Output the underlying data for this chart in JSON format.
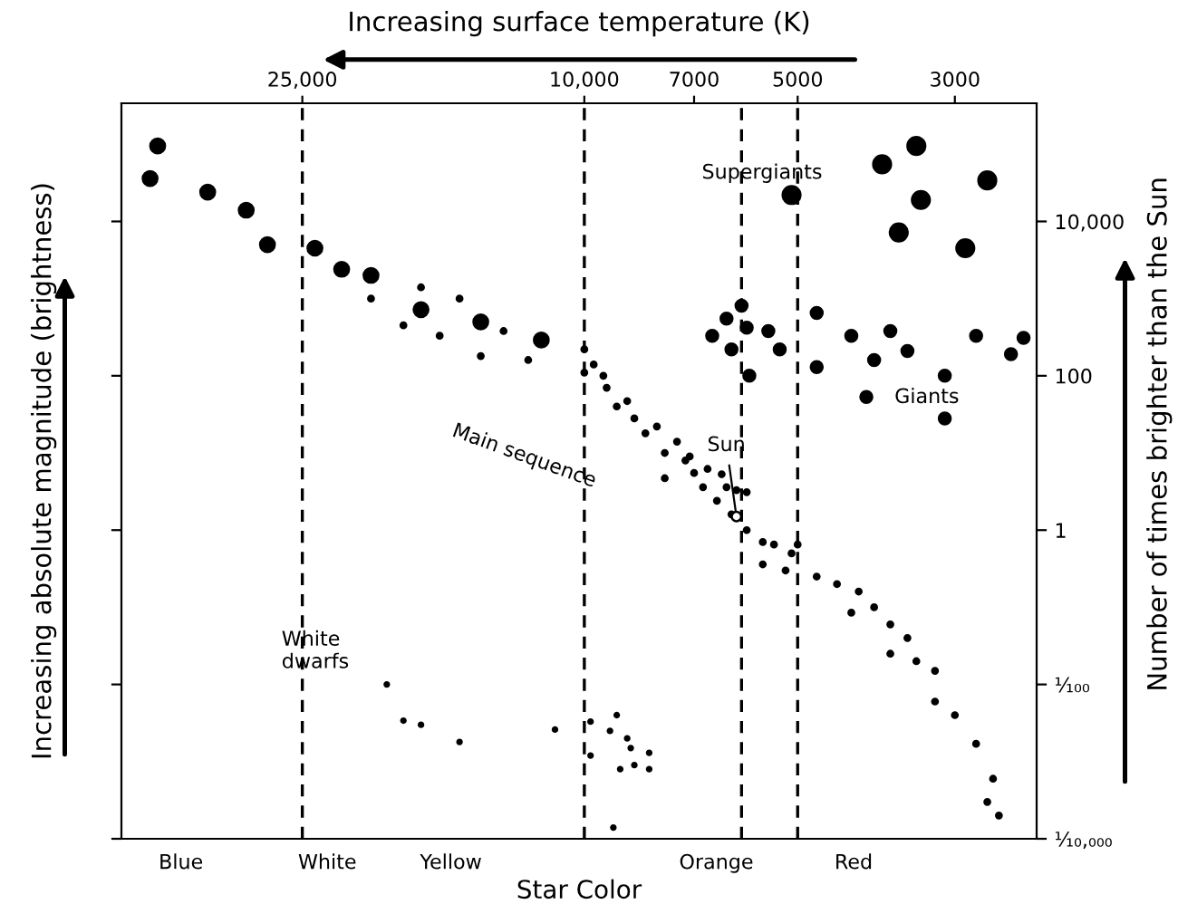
{
  "chart_data": {
    "type": "scatter",
    "xlabel": "Increasing surface temperature (K)",
    "ylabel": "Number of times brighter than the Sun",
    "log": "xy",
    "xlim": [
      45000,
      2300
    ],
    "xticks": [
      {
        "value": 25000,
        "label": "25,000"
      },
      {
        "value": 10000,
        "label": "10,000"
      },
      7000,
      5000,
      3000
    ],
    "ylim": [
      0.0001,
      340000
    ],
    "yticks": [
      {
        "value": 10000,
        "label": "10,000"
      },
      100,
      1,
      {
        "value": 0.01,
        "label": "¹⁄₁₀₀"
      },
      {
        "value": 0.0001,
        "label": "¹⁄₁₀,₀₀₀"
      }
    ],
    "marker": "circle",
    "ref_lines": [
      {
        "axis": "x",
        "value": 25000,
        "line_style": "dashed"
      },
      {
        "axis": "x",
        "value": 10000,
        "line_style": "dashed"
      },
      {
        "axis": "x",
        "value": 6000,
        "line_style": "dashed"
      },
      {
        "axis": "x",
        "value": 5000,
        "line_style": "dashed"
      }
    ],
    "annotations": [
      "Supergiants",
      "Giants",
      "Main sequence",
      "White dwarfs",
      {
        "text": "Sun",
        "x": 6100,
        "y": 1.5
      },
      "Star Color",
      "Blue",
      "White",
      "Yellow",
      "Orange",
      "Red",
      "Increasing absolute magnitude (brightness)"
    ],
    "series": [
      {
        "color": "#000000",
        "x": [
          40000,
          41000,
          34000,
          30000,
          28000,
          24000,
          22000,
          20000,
          17000,
          14000,
          11500
        ],
        "values": [
          95000,
          36000,
          24000,
          14000,
          5000,
          4500,
          2400,
          2000,
          720,
          500,
          290
        ]
      },
      {
        "color": "#000000",
        "x": [
          20000,
          17000,
          15000,
          18000,
          16000,
          14000,
          13000,
          12000,
          10000,
          10000,
          9700,
          9400,
          9300,
          9000,
          8700,
          8500,
          8200,
          7900,
          7700,
          7400,
          7200,
          7000,
          7700,
          7100,
          6800,
          6700,
          6500,
          6400,
          6300,
          6200,
          6100,
          5900,
          5900,
          5600,
          5400,
          5200,
          5600,
          5100,
          5000,
          4700,
          4400,
          4200,
          4100,
          3900,
          3700,
          3700,
          3500,
          3400,
          3200,
          3200,
          3000,
          2800,
          2700,
          2650,
          2600
        ],
        "values": [
          1000,
          1400,
          1000,
          450,
          330,
          180,
          380,
          160,
          220,
          110,
          140,
          100,
          70,
          40,
          47,
          28,
          18,
          22,
          10,
          14,
          8,
          5.5,
          4.7,
          9,
          3.6,
          6.2,
          2.4,
          5.3,
          3.6,
          1.6,
          3.3,
          3.1,
          1,
          0.7,
          0.65,
          0.3,
          0.36,
          0.5,
          0.65,
          0.25,
          0.2,
          0.085,
          0.16,
          0.1,
          0.06,
          0.025,
          0.04,
          0.02,
          0.015,
          0.006,
          0.004,
          0.0017,
          0.0003,
          0.0006,
          0.0002
        ]
      },
      {
        "color": "#000000",
        "x": [
          6600,
          6300,
          6200,
          6000,
          5900,
          5850,
          5500,
          5300,
          4700,
          4700,
          4200,
          3900,
          3700,
          3500,
          4000,
          3100,
          3100,
          2800,
          2500,
          2400
        ],
        "values": [
          330,
          550,
          220,
          810,
          420,
          100,
          380,
          220,
          650,
          130,
          330,
          160,
          380,
          210,
          53,
          100,
          28,
          330,
          190,
          310
        ]
      },
      {
        "color": "#000000",
        "x": [
          5100,
          3800,
          3400,
          3350,
          3600,
          2900,
          2700
        ],
        "values": [
          22000,
          55000,
          95000,
          19000,
          7200,
          4500,
          34000
        ]
      },
      {
        "color": "#000000",
        "x": [
          19000,
          18000,
          17000,
          15000,
          11000,
          9800,
          9800,
          9200,
          9000,
          8700,
          8600,
          8500,
          8900,
          8100,
          8100,
          9100
        ],
        "values": [
          0.01,
          0.0034,
          0.003,
          0.0018,
          0.0026,
          0.0033,
          0.0012,
          0.0025,
          0.004,
          0.002,
          0.0015,
          0.0009,
          0.0008,
          0.0013,
          0.0008,
          0.00014
        ]
      },
      {
        "color": "#000000",
        "x": [
          6100
        ],
        "values": [
          1.5
        ]
      }
    ]
  }
}
